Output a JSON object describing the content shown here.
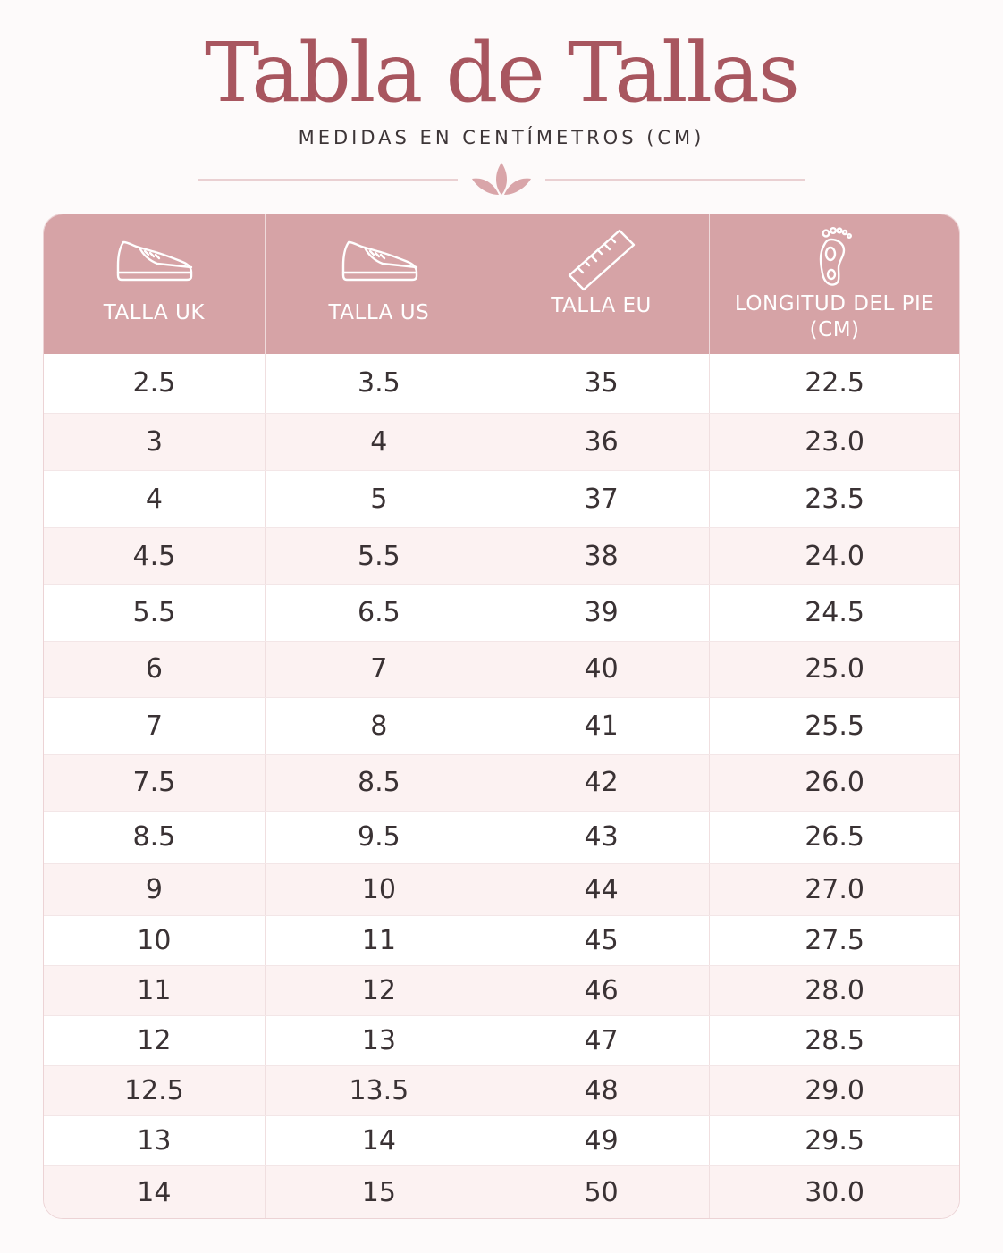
{
  "title": "Tabla de Tallas",
  "subtitle": "MEDIDAS EN CENTÍMETROS (CM)",
  "colors": {
    "title": "#a8565f",
    "header_bg": "#d6a3a6",
    "row_alt": "#fcf2f2",
    "border": "#ecd3d5"
  },
  "divider_icon": "leaf-ornament-icon",
  "columns": [
    {
      "icon": "sneaker-icon",
      "label": "TALLA UK"
    },
    {
      "icon": "sneaker-icon",
      "label": "TALLA US"
    },
    {
      "icon": "ruler-icon",
      "label": "TALLA EU"
    },
    {
      "icon": "foot-icon",
      "label": "LONGITUD DEL PIE (CM)"
    }
  ],
  "rows": [
    [
      "2.5",
      "3.5",
      "35",
      "22.5"
    ],
    [
      "3",
      "4",
      "36",
      "23.0"
    ],
    [
      "4",
      "5",
      "37",
      "23.5"
    ],
    [
      "4.5",
      "5.5",
      "38",
      "24.0"
    ],
    [
      "5.5",
      "6.5",
      "39",
      "24.5"
    ],
    [
      "6",
      "7",
      "40",
      "25.0"
    ],
    [
      "7",
      "8",
      "41",
      "25.5"
    ],
    [
      "7.5",
      "8.5",
      "42",
      "26.0"
    ],
    [
      "8.5",
      "9.5",
      "43",
      "26.5"
    ],
    [
      "9",
      "10",
      "44",
      "27.0"
    ],
    [
      "10",
      "11",
      "45",
      "27.5"
    ],
    [
      "11",
      "12",
      "46",
      "28.0"
    ],
    [
      "12",
      "13",
      "47",
      "28.5"
    ],
    [
      "12.5",
      "13.5",
      "48",
      "29.0"
    ],
    [
      "13",
      "14",
      "49",
      "29.5"
    ],
    [
      "14",
      "15",
      "50",
      "30.0"
    ]
  ]
}
